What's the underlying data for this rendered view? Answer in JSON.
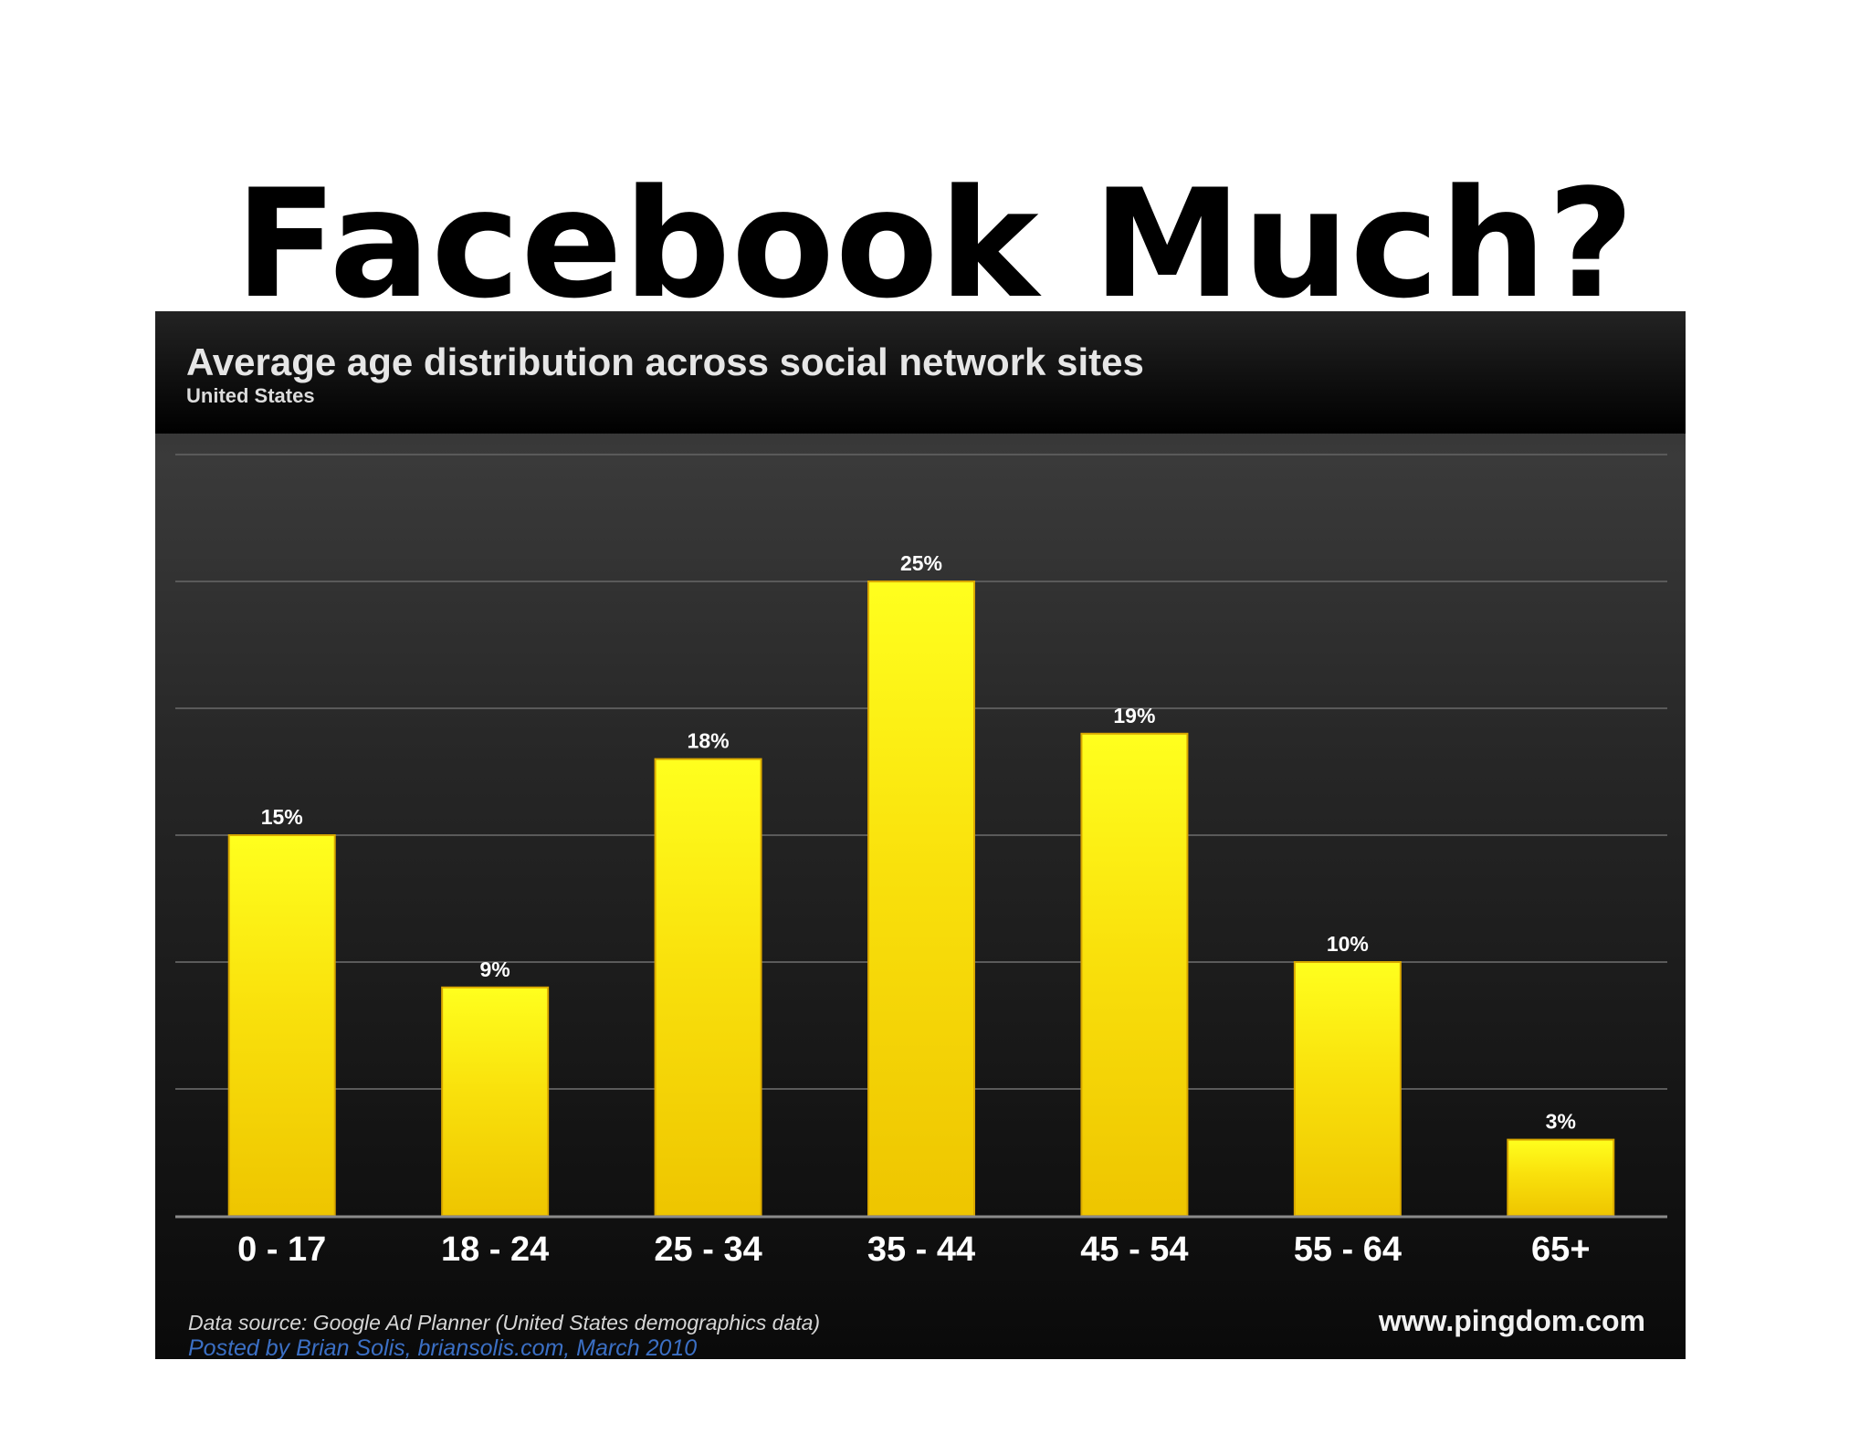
{
  "slide": {
    "title": "Facebook Much?"
  },
  "chart_data": {
    "type": "bar",
    "title": "Average age distribution across social network sites",
    "subtitle": "United States",
    "categories": [
      "0 - 17",
      "18 - 24",
      "25 - 34",
      "35 - 44",
      "45 - 54",
      "55 - 64",
      "65+"
    ],
    "values": [
      15,
      9,
      18,
      25,
      19,
      10,
      3
    ],
    "value_labels": [
      "15%",
      "9%",
      "18%",
      "25%",
      "19%",
      "10%",
      "3%"
    ],
    "unit": "%",
    "ylim": [
      0,
      30
    ],
    "grid": true,
    "bar_color": "#f5d60a",
    "background_color": "#1e1e1e"
  },
  "footer": {
    "source": "Data source: Google Ad Planner (United States demographics data)",
    "posted": "Posted by Brian Solis, briansolis.com, March 2010",
    "site": "www.pingdom.com"
  }
}
